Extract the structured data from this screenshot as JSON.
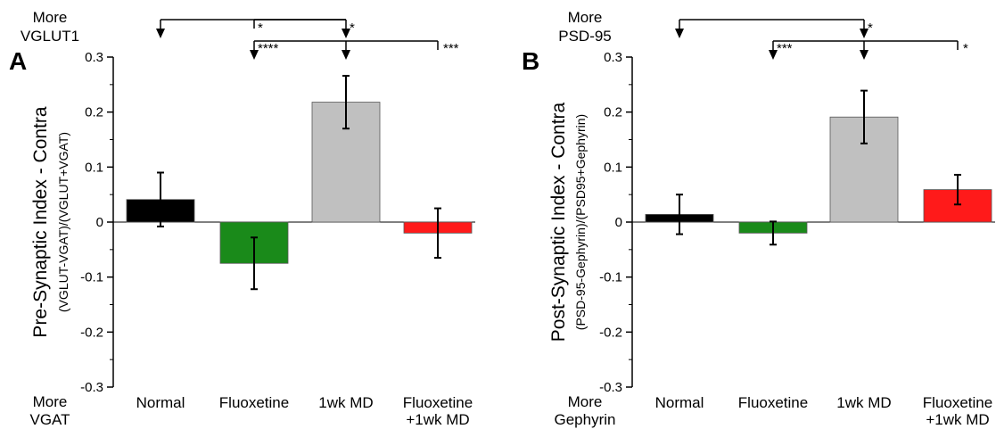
{
  "chart_data": [
    {
      "panel": "A",
      "type": "bar",
      "categories": [
        "Normal",
        "Fluoxetine",
        "1wk MD",
        "Fluoxetine\n+1wk MD"
      ],
      "values": [
        0.041,
        -0.075,
        0.218,
        -0.02
      ],
      "errors": [
        0.049,
        0.047,
        0.048,
        0.045
      ],
      "colors": [
        "#000000",
        "#1a8a1a",
        "#c0c0c0",
        "#ff1a1a"
      ],
      "ylim": [
        -0.3,
        0.3
      ],
      "yticks": [
        "0.3",
        "0.2",
        "0.1",
        "0",
        "-0.1",
        "-0.2",
        "-0.3"
      ],
      "ylabel": "Pre-Synaptic Index - Contra",
      "ylabel_sub": "(VGLUT-VGAT)/(VGLUT+VGAT)",
      "top_label": [
        "More",
        "VGLUT1"
      ],
      "bottom_label": [
        "More",
        "VGAT"
      ],
      "significance": [
        {
          "from": 0,
          "to": 2,
          "label": "*",
          "drop": 2
        },
        {
          "from": 1,
          "to": 2,
          "label": "*"
        },
        {
          "from": 1,
          "to": 3,
          "label": "****",
          "drop": 2,
          "right_label": "***"
        }
      ]
    },
    {
      "panel": "B",
      "type": "bar",
      "categories": [
        "Normal",
        "Fluoxetine",
        "1wk MD",
        "Fluoxetine\n+1wk MD"
      ],
      "values": [
        0.014,
        -0.02,
        0.191,
        0.059
      ],
      "errors": [
        0.036,
        0.021,
        0.048,
        0.027
      ],
      "colors": [
        "#000000",
        "#1a8a1a",
        "#c0c0c0",
        "#ff1a1a"
      ],
      "ylim": [
        -0.3,
        0.3
      ],
      "yticks": [
        "0.3",
        "0.2",
        "0.1",
        "0",
        "-0.1",
        "-0.2",
        "-0.3"
      ],
      "ylabel": "Post-Synaptic Index - Contra",
      "ylabel_sub": "(PSD-95-Gephyrin)/(PSD95+Gephyrin)",
      "top_label": [
        "More",
        "PSD-95"
      ],
      "bottom_label": [
        "More",
        "Gephyrin"
      ],
      "significance": [
        {
          "from": 0,
          "to": 2,
          "label": "*",
          "drop": 2
        },
        {
          "from": 1,
          "to": 3,
          "label": "***",
          "drop": 2,
          "right_label": "*"
        }
      ]
    }
  ]
}
